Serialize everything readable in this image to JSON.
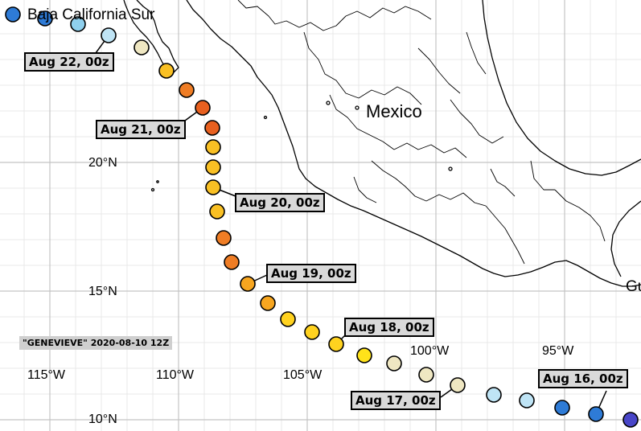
{
  "storm_label": "\"GENEVIEVE\" 2020-08-10 12Z",
  "region_labels": [
    {
      "name": "region-baja-california-sur",
      "text": "Baja California Sur"
    },
    {
      "name": "region-mexico",
      "text": "Mexico"
    },
    {
      "name": "region-guatemala-partial",
      "text": "Gu"
    }
  ],
  "lat_labels": [
    "20°N",
    "15°N",
    "10°N"
  ],
  "lon_labels": [
    "115°W",
    "110°W",
    "105°W",
    "100°W",
    "95°W"
  ],
  "track_labels": [
    "Aug 22, 00z",
    "Aug 21, 00z",
    "Aug 20, 00z",
    "Aug 19, 00z",
    "Aug 18, 00z",
    "Aug 17, 00z",
    "Aug 16, 00z"
  ],
  "colors": {
    "land_border": "#000000",
    "grid_major": "#c8c8c8",
    "grid_minor": "#e6e6e6",
    "ocean": "#ffffff",
    "cat_td": "#2e7bd6",
    "cat_ts": "#8fd0ee",
    "cat_ts_weak": "#bfe4f5",
    "cat_post": "#efe7c2",
    "cat1": "#ffd21f",
    "cat1_strong": "#f9c024",
    "cat2": "#f7a620",
    "cat3": "#ef7d25",
    "cat4": "#e8601f",
    "disturbance": "#4946c8"
  }
}
